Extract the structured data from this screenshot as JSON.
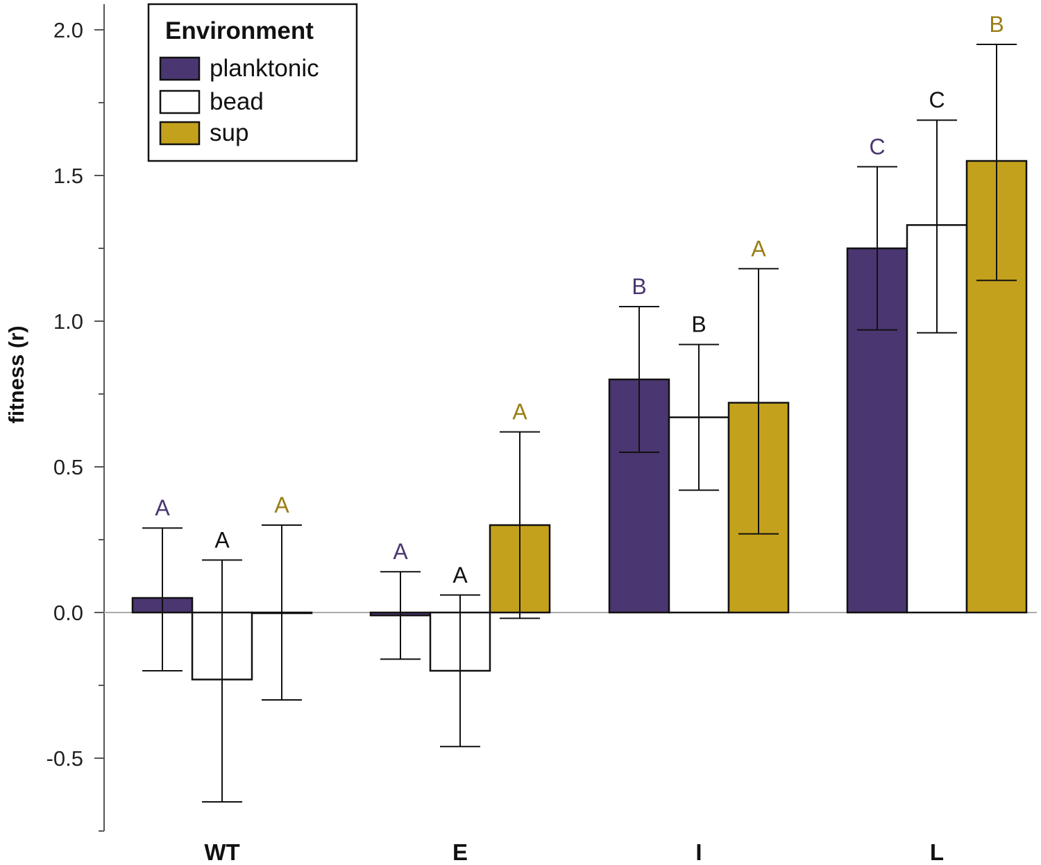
{
  "chart_data": {
    "type": "bar",
    "title": "",
    "xlabel": "",
    "ylabel": "fitness (r)",
    "ylim": [
      -0.75,
      2.1
    ],
    "yticks": [
      -0.5,
      0.0,
      0.5,
      1.0,
      1.5,
      2.0
    ],
    "ytick_labels": [
      "-0.5",
      "0.0",
      "0.5",
      "1.0",
      "1.5",
      "2.0"
    ],
    "categories": [
      "WT",
      "E",
      "I",
      "L"
    ],
    "legend": {
      "title": "Environment",
      "position": "top-left"
    },
    "colors": {
      "planktonic": "#4a3670",
      "bead": "#ffffff",
      "sup": "#c4a11c",
      "planktonic_label": "#4a3670",
      "bead_label": "#111111",
      "sup_label": "#9a7d12",
      "outline": "#111111",
      "zero_line": "#aaaaaa",
      "axis": "#555555"
    },
    "series": [
      {
        "name": "planktonic",
        "values": [
          0.05,
          -0.01,
          0.8,
          1.25
        ],
        "err_low": [
          -0.2,
          -0.16,
          0.55,
          0.97
        ],
        "err_high": [
          0.29,
          0.14,
          1.05,
          1.53
        ],
        "letters": [
          "A",
          "A",
          "B",
          "C"
        ]
      },
      {
        "name": "bead",
        "values": [
          -0.23,
          -0.2,
          0.67,
          1.33
        ],
        "err_low": [
          -0.65,
          -0.46,
          0.42,
          0.96
        ],
        "err_high": [
          0.18,
          0.06,
          0.92,
          1.69
        ],
        "letters": [
          "A",
          "A",
          "B",
          "C"
        ]
      },
      {
        "name": "sup",
        "values": [
          0.0,
          0.3,
          0.72,
          1.55
        ],
        "err_low": [
          -0.3,
          -0.02,
          0.27,
          1.14
        ],
        "err_high": [
          0.3,
          0.62,
          1.18,
          1.95
        ],
        "letters": [
          "A",
          "A",
          "A",
          "B"
        ]
      }
    ]
  }
}
